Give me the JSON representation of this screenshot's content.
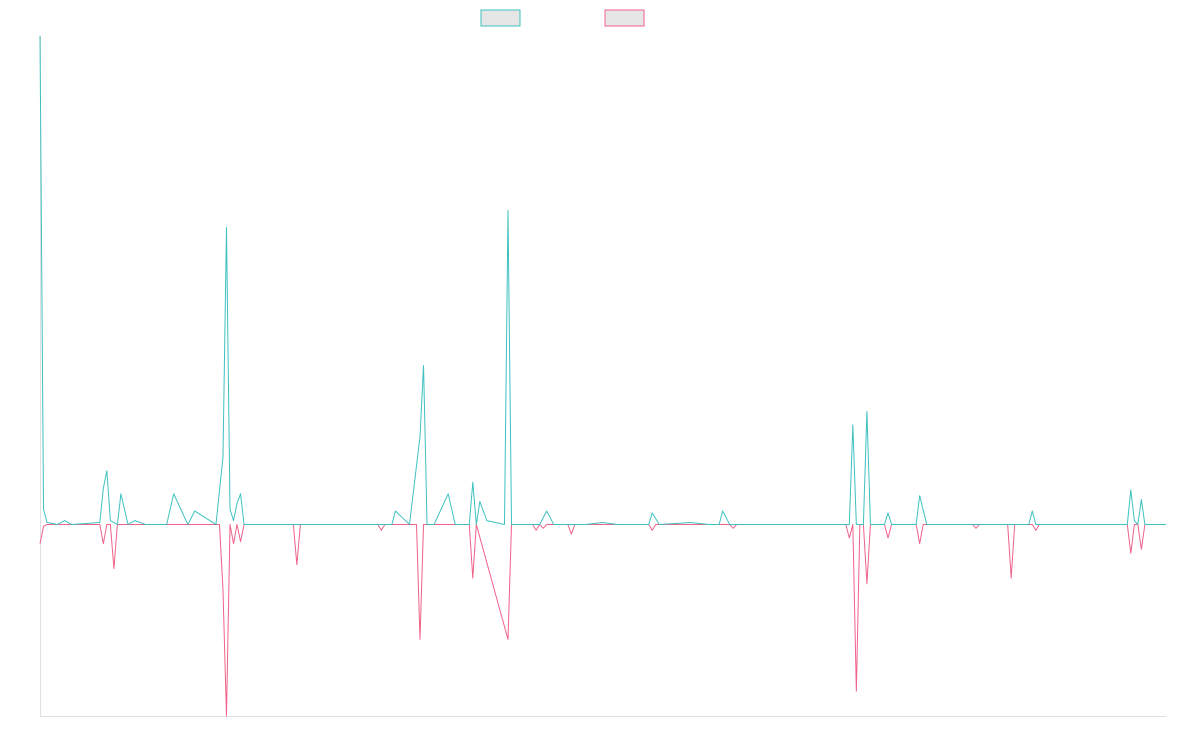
{
  "chart_data": {
    "type": "line",
    "title": "",
    "xlabel": "",
    "ylabel": "",
    "grid": false,
    "legend_position": "top-center",
    "ylim": [
      -100,
      255
    ],
    "colors": {
      "series_1": "#3ec1bf",
      "series_2": "#f0628a",
      "axis": "#e0e0e0",
      "legend_fill": "#e6e6e6"
    },
    "series": [
      {
        "values": [
          255,
          1,
          0,
          0,
          0,
          0,
          0,
          0,
          0,
          0,
          0,
          0,
          0,
          0,
          0,
          0,
          0,
          0,
          0,
          0,
          1,
          0,
          0,
          0,
          0,
          0,
          0,
          0,
          0,
          0,
          0,
          0,
          0,
          0,
          0,
          0,
          0,
          0,
          0,
          0,
          0,
          0,
          0,
          0,
          0,
          0,
          0,
          0,
          0,
          0,
          0,
          0,
          0,
          0,
          0,
          0,
          0,
          0,
          0,
          0,
          0,
          0,
          0,
          0,
          0,
          0,
          0,
          0,
          0,
          0,
          0,
          0,
          0,
          0,
          0,
          0,
          0,
          0,
          0,
          0,
          0,
          0,
          0,
          0,
          0,
          0,
          0,
          0,
          0,
          0,
          0,
          0,
          0,
          0,
          0,
          0,
          0,
          0,
          0,
          0,
          0,
          0,
          0,
          0,
          0,
          0,
          0,
          0,
          0,
          0,
          0,
          0,
          0,
          0,
          0,
          0,
          0,
          0,
          0,
          0,
          0,
          0,
          0,
          0,
          0,
          0,
          0,
          0,
          0,
          0,
          0,
          0,
          0,
          0,
          0,
          0,
          0,
          0,
          0,
          0,
          0,
          0,
          0,
          0,
          0,
          0,
          0,
          0,
          0,
          0,
          0,
          0,
          0,
          0,
          0,
          0,
          0,
          0,
          0,
          0,
          0,
          0,
          0,
          0,
          0,
          0,
          0,
          0,
          0,
          0,
          0,
          0,
          0,
          0,
          0,
          0,
          0,
          0,
          0,
          0,
          0,
          0,
          0,
          0,
          0,
          0,
          0,
          0,
          0,
          0,
          0,
          0,
          0,
          0,
          0,
          0,
          0,
          0,
          0,
          0,
          0,
          0,
          0,
          0,
          0,
          0,
          0,
          0,
          0,
          0,
          0,
          0,
          0,
          0,
          0,
          0,
          0,
          0,
          0,
          0,
          0,
          0,
          0,
          0,
          0,
          0,
          0,
          0,
          0,
          0,
          0,
          0,
          0,
          0,
          0,
          0,
          0,
          0,
          0,
          0,
          0,
          0,
          0,
          0,
          0,
          0,
          0,
          0,
          0,
          0,
          0,
          0,
          0,
          0,
          0,
          0,
          0,
          0,
          0,
          0,
          0,
          0,
          0,
          0,
          0,
          0,
          0,
          0,
          0,
          0,
          0,
          0,
          0,
          0,
          0,
          0,
          0,
          0,
          0,
          0,
          0,
          0,
          0,
          0,
          0,
          0,
          0,
          0,
          0,
          0,
          0,
          0,
          0,
          0,
          0,
          0,
          0,
          0,
          0,
          0,
          0,
          0,
          0,
          0,
          0,
          0,
          0,
          0,
          0,
          0,
          0,
          0,
          0,
          0,
          0,
          0,
          0,
          0
        ]
      },
      {
        "values": [
          -10,
          0,
          0,
          0,
          0,
          0,
          0,
          0,
          0,
          0,
          0,
          0,
          0,
          0,
          0,
          0,
          0,
          0,
          0,
          0,
          -1,
          0,
          0,
          0,
          0,
          0,
          0,
          0,
          0,
          0,
          0,
          0,
          0,
          0,
          0,
          0,
          0,
          0,
          0,
          0,
          0,
          0,
          0,
          0,
          0,
          0,
          0,
          0,
          0,
          0,
          0,
          0,
          0,
          0,
          0,
          0,
          0,
          0,
          0,
          0,
          0,
          0,
          0,
          0,
          0,
          0,
          0,
          0,
          0,
          0,
          0,
          0,
          0,
          0,
          0,
          0,
          0,
          0,
          0,
          0,
          0,
          0,
          0,
          0,
          0,
          0,
          0,
          0,
          0,
          0,
          0,
          0,
          0,
          0,
          0,
          0,
          0,
          0,
          0,
          0,
          0,
          0,
          0,
          0,
          0,
          0,
          0,
          0,
          0,
          0,
          0,
          0,
          0,
          0,
          0,
          0,
          0,
          0,
          0,
          0,
          0,
          0,
          0,
          0,
          0,
          0,
          0,
          0,
          0,
          0,
          0,
          0,
          0,
          0,
          0,
          0,
          0,
          0,
          0,
          0,
          0,
          0,
          0,
          0,
          0,
          0,
          0,
          0,
          0,
          0,
          0,
          0,
          0,
          0,
          0,
          0,
          0,
          0,
          0,
          0,
          0,
          0,
          0,
          0,
          0,
          0,
          0,
          0,
          0,
          0,
          0,
          0,
          0,
          0,
          0,
          0,
          0,
          0,
          0,
          0,
          0,
          0,
          0,
          0,
          0,
          0,
          0,
          0,
          0,
          0,
          0,
          0,
          0,
          0,
          0,
          0,
          0,
          0,
          0,
          0,
          0,
          0,
          0,
          0,
          0,
          0,
          0,
          0,
          0,
          0,
          0,
          0,
          0,
          0,
          0,
          0,
          0,
          0,
          0,
          0,
          0,
          0,
          0,
          0,
          0,
          0,
          0,
          0,
          0,
          0,
          0,
          0,
          0,
          0,
          0,
          0,
          0,
          0,
          0,
          0,
          0,
          0,
          0,
          0,
          0,
          0,
          0,
          0,
          0,
          0,
          0,
          0,
          0,
          0,
          0,
          0,
          0,
          0,
          0,
          0,
          0,
          0,
          0,
          0,
          0,
          0,
          0,
          0,
          0,
          0,
          0,
          0,
          0,
          0,
          0,
          0,
          0,
          0,
          0,
          0,
          0,
          0,
          0,
          0,
          0,
          0,
          0,
          0,
          0,
          0,
          0,
          0,
          0,
          0,
          0,
          0,
          0,
          0,
          0,
          0,
          0,
          0,
          0,
          0,
          0,
          0,
          0,
          0,
          0,
          0,
          0,
          0,
          0,
          0,
          0,
          0,
          0,
          0,
          0,
          0
        ]
      }
    ],
    "spikes_1": [
      [
        0,
        255
      ],
      [
        1,
        8
      ],
      [
        2,
        1
      ],
      [
        5,
        0
      ],
      [
        7,
        2
      ],
      [
        9,
        0
      ],
      [
        17,
        1
      ],
      [
        18,
        19
      ],
      [
        19,
        28
      ],
      [
        20,
        2
      ],
      [
        22,
        0
      ],
      [
        23,
        16
      ],
      [
        25,
        0
      ],
      [
        27,
        2
      ],
      [
        30,
        0
      ],
      [
        36,
        0
      ],
      [
        38,
        16
      ],
      [
        42,
        0
      ],
      [
        44,
        7
      ],
      [
        50,
        0
      ],
      [
        52,
        35
      ],
      [
        53,
        155
      ],
      [
        54,
        8
      ],
      [
        55,
        2
      ],
      [
        56,
        11
      ],
      [
        57,
        16
      ],
      [
        58,
        0
      ],
      [
        75,
        0
      ],
      [
        96,
        0
      ],
      [
        100,
        0
      ],
      [
        101,
        7
      ],
      [
        105,
        0
      ],
      [
        108,
        46
      ],
      [
        109,
        83
      ],
      [
        110,
        0
      ],
      [
        112,
        0
      ],
      [
        116,
        16
      ],
      [
        118,
        0
      ],
      [
        122,
        0
      ],
      [
        123,
        22
      ],
      [
        124,
        0
      ],
      [
        125,
        12
      ],
      [
        127,
        2
      ],
      [
        132,
        0
      ],
      [
        133,
        164
      ],
      [
        134,
        0
      ],
      [
        140,
        0
      ],
      [
        142,
        0
      ],
      [
        144,
        7
      ],
      [
        146,
        0
      ],
      [
        150,
        0
      ],
      [
        155,
        0
      ],
      [
        160,
        1
      ],
      [
        164,
        0
      ],
      [
        173,
        0
      ],
      [
        174,
        6
      ],
      [
        176,
        0
      ],
      [
        185,
        1
      ],
      [
        190,
        0
      ],
      [
        193,
        0
      ],
      [
        194,
        7
      ],
      [
        196,
        0
      ],
      [
        205,
        0
      ],
      [
        220,
        0
      ],
      [
        227,
        0
      ],
      [
        230,
        0
      ],
      [
        231,
        52
      ],
      [
        232,
        0
      ],
      [
        234,
        0
      ],
      [
        235,
        59
      ],
      [
        236,
        0
      ],
      [
        240,
        0
      ],
      [
        241,
        6
      ],
      [
        242,
        0
      ],
      [
        246,
        0
      ],
      [
        249,
        0
      ],
      [
        250,
        15
      ],
      [
        252,
        0
      ],
      [
        262,
        0
      ],
      [
        271,
        0
      ],
      [
        281,
        0
      ],
      [
        282,
        7
      ],
      [
        283,
        0
      ],
      [
        290,
        0
      ],
      [
        309,
        0
      ],
      [
        310,
        18
      ],
      [
        311,
        2
      ],
      [
        312,
        0
      ],
      [
        313,
        13
      ],
      [
        314,
        0
      ],
      [
        320,
        0
      ]
    ],
    "spikes_2": [
      [
        0,
        -10
      ],
      [
        1,
        -1
      ],
      [
        2,
        0
      ],
      [
        17,
        0
      ],
      [
        18,
        -10
      ],
      [
        19,
        0
      ],
      [
        20,
        0
      ],
      [
        21,
        -23
      ],
      [
        22,
        0
      ],
      [
        51,
        0
      ],
      [
        52,
        -34
      ],
      [
        53,
        -100
      ],
      [
        54,
        0
      ],
      [
        55,
        -10
      ],
      [
        56,
        0
      ],
      [
        57,
        -9
      ],
      [
        58,
        0
      ],
      [
        72,
        0
      ],
      [
        73,
        -21
      ],
      [
        74,
        0
      ],
      [
        96,
        0
      ],
      [
        97,
        -3
      ],
      [
        98,
        0
      ],
      [
        107,
        0
      ],
      [
        108,
        -60
      ],
      [
        109,
        0
      ],
      [
        122,
        0
      ],
      [
        123,
        -28
      ],
      [
        124,
        0
      ],
      [
        133,
        -60
      ],
      [
        134,
        0
      ],
      [
        140,
        0
      ],
      [
        141,
        -3
      ],
      [
        142,
        0
      ],
      [
        143,
        -2
      ],
      [
        144,
        0
      ],
      [
        150,
        0
      ],
      [
        151,
        -5
      ],
      [
        152,
        0
      ],
      [
        173,
        0
      ],
      [
        174,
        -3
      ],
      [
        175,
        0
      ],
      [
        196,
        0
      ],
      [
        197,
        -2
      ],
      [
        198,
        0
      ],
      [
        229,
        0
      ],
      [
        230,
        -7
      ],
      [
        231,
        0
      ],
      [
        232,
        -87
      ],
      [
        233,
        0
      ],
      [
        234,
        0
      ],
      [
        235,
        -31
      ],
      [
        236,
        0
      ],
      [
        240,
        0
      ],
      [
        241,
        -7
      ],
      [
        242,
        0
      ],
      [
        249,
        0
      ],
      [
        250,
        -10
      ],
      [
        251,
        0
      ],
      [
        265,
        0
      ],
      [
        266,
        -2
      ],
      [
        267,
        0
      ],
      [
        275,
        0
      ],
      [
        276,
        -28
      ],
      [
        277,
        0
      ],
      [
        282,
        0
      ],
      [
        283,
        -3
      ],
      [
        284,
        0
      ],
      [
        309,
        0
      ],
      [
        310,
        -15
      ],
      [
        311,
        0
      ],
      [
        312,
        0
      ],
      [
        313,
        -13
      ],
      [
        314,
        0
      ],
      [
        320,
        0
      ]
    ],
    "xlim": [
      0,
      320
    ]
  }
}
